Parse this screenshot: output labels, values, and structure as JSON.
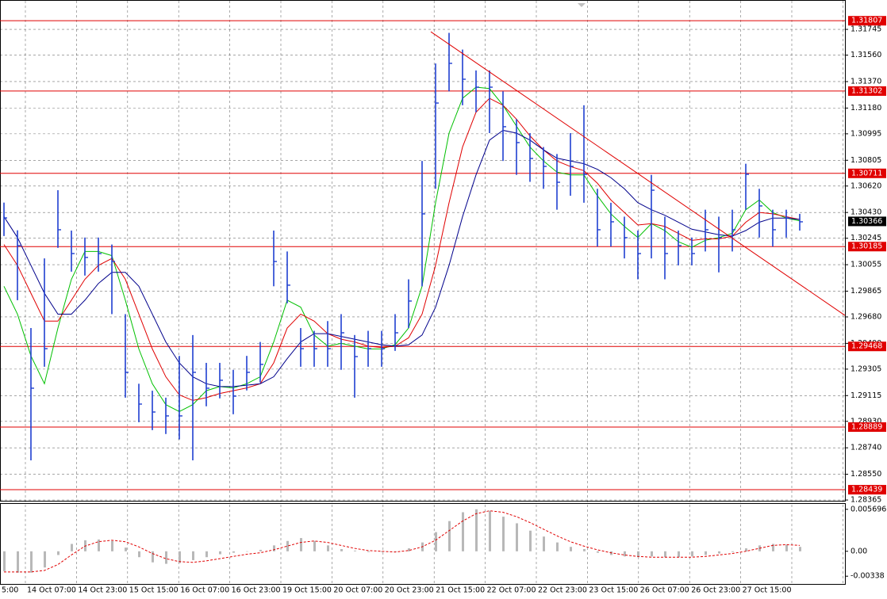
{
  "chart_data": [
    {
      "type": "ohlc",
      "ylim": [
        1.28354,
        1.31956
      ],
      "yticks": [
        1.31745,
        {
          "value": 1.3156,
          "label": "1.31560"
        },
        {
          "value": 1.3137,
          "label": "1.31370"
        },
        {
          "value": 1.3118,
          "label": "1.31180"
        },
        1.30995,
        1.30805,
        {
          "value": 1.3062,
          "label": "1.30620"
        },
        {
          "value": 1.3043,
          "label": "1.30430"
        },
        1.30245,
        1.30055,
        1.29865,
        {
          "value": 1.2968,
          "label": "1.29680"
        },
        {
          "value": 1.2949,
          "label": "1.29490"
        },
        1.29305,
        1.29115,
        {
          "value": 1.2893,
          "label": "1.28930"
        },
        {
          "value": 1.2874,
          "label": "1.28740"
        },
        {
          "value": 1.2855,
          "label": "1.28550"
        },
        1.28365
      ],
      "grid": true,
      "x_labels": [
        "5:00",
        "14 Oct 07:00",
        "14 Oct 23:00",
        "15 Oct 15:00",
        "16 Oct 07:00",
        "16 Oct 23:00",
        "19 Oct 15:00",
        "20 Oct 07:00",
        "20 Oct 23:00",
        "21 Oct 15:00",
        "22 Oct 07:00",
        "22 Oct 23:00",
        "23 Oct 15:00",
        "26 Oct 07:00",
        "26 Oct 23:00",
        "27 Oct 15:00"
      ],
      "bars": {
        "color": "#1f3fd0",
        "high": [
          1.30501,
          1.30302,
          1.296,
          1.301,
          1.3059,
          1.303,
          1.3025,
          1.3025,
          1.302,
          1.297,
          1.292,
          1.2915,
          1.291,
          1.294,
          1.2955,
          1.2935,
          1.2935,
          1.293,
          1.294,
          1.295,
          1.303,
          1.3015,
          1.296,
          1.2958,
          1.2965,
          1.297,
          1.2955,
          1.2958,
          1.2958,
          1.297,
          1.2995,
          1.308,
          1.315,
          1.3172,
          1.316,
          1.3145,
          1.3145,
          1.313,
          1.311,
          1.31,
          1.309,
          1.3085,
          1.31,
          1.312,
          1.306,
          1.305,
          1.304,
          1.303,
          1.307,
          1.304,
          1.303,
          1.3025,
          1.3045,
          1.304,
          1.3045,
          1.3078,
          1.306,
          1.3045,
          1.3045,
          1.3042
        ],
        "low": [
          1.30261,
          1.298,
          1.2865,
          1.29322,
          1.30176,
          1.30005,
          1.29977,
          1.30005,
          1.297,
          1.291,
          1.28924,
          1.28867,
          1.28839,
          1.288,
          1.2865,
          1.29038,
          1.29095,
          1.28981,
          1.29152,
          1.29209,
          1.299,
          1.29778,
          1.29322,
          1.29322,
          1.29322,
          1.293,
          1.291,
          1.29322,
          1.29322,
          1.29436,
          1.296,
          1.299,
          1.306,
          1.313,
          1.312,
          1.3115,
          1.31,
          1.308,
          1.307,
          1.3065,
          1.306,
          1.3045,
          1.3055,
          1.305,
          1.30185,
          1.30185,
          1.301,
          1.2995,
          1.301,
          1.2995,
          1.3005,
          1.3005,
          1.3015,
          1.3,
          1.3015,
          1.3045,
          1.3025,
          1.30185,
          1.3025,
          1.303
        ],
        "close": [
          1.30391,
          1.30192,
          1.29168,
          1.29452,
          1.30306,
          1.30135,
          1.30107,
          1.30135,
          1.30078,
          1.29282,
          1.29054,
          1.28997,
          1.28969,
          1.28969,
          1.29282,
          1.29168,
          1.29225,
          1.29111,
          1.29282,
          1.29339,
          1.30078,
          1.29908,
          1.29452,
          1.29452,
          1.29452,
          1.29566,
          1.29395,
          1.29452,
          1.29452,
          1.29566,
          1.29794,
          1.3042,
          1.31216,
          1.31501,
          1.31387,
          1.3133,
          1.3133,
          1.31046,
          1.30932,
          1.30818,
          1.30761,
          1.30647,
          1.30761,
          1.30704,
          1.30306,
          1.30363,
          1.30249,
          1.30135,
          1.3059,
          1.30135,
          1.30192,
          1.30135,
          1.30306,
          1.30249,
          1.30306,
          1.30704,
          1.30477,
          1.30306,
          1.30391,
          1.30363
        ]
      },
      "series": [
        {
          "color": "#00c000",
          "values": [
            1.299,
            1.297,
            1.294,
            1.292,
            1.296,
            1.2995,
            1.3015,
            1.3015,
            1.3012,
            1.298,
            1.2945,
            1.292,
            1.2905,
            1.29,
            1.2905,
            1.2915,
            1.2918,
            1.2917,
            1.292,
            1.2925,
            1.295,
            1.298,
            1.2975,
            1.2955,
            1.2947,
            1.2949,
            1.2947,
            1.2945,
            1.2945,
            1.2948,
            1.296,
            1.299,
            1.305,
            1.31,
            1.3125,
            1.3133,
            1.3132,
            1.312,
            1.3105,
            1.309,
            1.308,
            1.3072,
            1.307,
            1.307,
            1.3055,
            1.3042,
            1.3033,
            1.3025,
            1.3035,
            1.303,
            1.3022,
            1.3018,
            1.3023,
            1.3025,
            1.3028,
            1.3045,
            1.3052,
            1.3043,
            1.3039,
            1.3037
          ]
        },
        {
          "color": "#e00000",
          "values": [
            1.302,
            1.3005,
            1.2985,
            1.2965,
            1.2965,
            1.298,
            1.2995,
            1.3005,
            1.301,
            1.2995,
            1.297,
            1.2945,
            1.2925,
            1.2912,
            1.2908,
            1.291,
            1.2913,
            1.2915,
            1.2917,
            1.292,
            1.2935,
            1.296,
            1.297,
            1.2965,
            1.2956,
            1.2952,
            1.295,
            1.2947,
            1.2946,
            1.2947,
            1.2953,
            1.297,
            1.3005,
            1.305,
            1.309,
            1.3115,
            1.3125,
            1.312,
            1.311,
            1.3098,
            1.3088,
            1.308,
            1.3076,
            1.3073,
            1.3064,
            1.3052,
            1.3043,
            1.3034,
            1.3035,
            1.3033,
            1.3028,
            1.3023,
            1.3024,
            1.3024,
            1.3026,
            1.3036,
            1.3043,
            1.3042,
            1.304,
            1.3038
          ]
        },
        {
          "color": "#00008b",
          "values": [
            1.304,
            1.3025,
            1.3005,
            1.2985,
            1.297,
            1.297,
            1.298,
            1.2992,
            1.3,
            1.3,
            1.299,
            1.297,
            1.295,
            1.2935,
            1.2925,
            1.292,
            1.2918,
            1.2918,
            1.2919,
            1.292,
            1.2925,
            1.2938,
            1.295,
            1.2956,
            1.2956,
            1.2954,
            1.2952,
            1.295,
            1.2948,
            1.2947,
            1.2948,
            1.2955,
            1.2975,
            1.3005,
            1.304,
            1.307,
            1.3095,
            1.3102,
            1.31,
            1.3095,
            1.3088,
            1.3082,
            1.308,
            1.3078,
            1.3074,
            1.3068,
            1.306,
            1.305,
            1.3045,
            1.3041,
            1.3036,
            1.3031,
            1.3029,
            1.3027,
            1.3026,
            1.303,
            1.3036,
            1.3039,
            1.3039,
            1.3038
          ]
        }
      ],
      "levels": {
        "color": "#e00000",
        "values": [
          1.31807,
          1.31302,
          1.30711,
          1.30185,
          1.29468,
          1.28889,
          1.28439
        ]
      },
      "last_price": 1.30366,
      "trendline": [
        1.31728,
        1.29691
      ]
    },
    {
      "type": "histogram",
      "ylim": [
        -0.00454,
        0.00643
      ],
      "yticks": [
        0.005696,
        {
          "value": 0,
          "label": "0.00"
        },
        -0.00338
      ],
      "color": "#b8b8b8",
      "values": [
        -0.0027,
        -0.0029,
        -0.0029,
        -0.0022,
        -0.0005,
        0.001,
        0.0015,
        0.0016,
        0.0014,
        0.0005,
        -0.0008,
        -0.0015,
        -0.0017,
        -0.0016,
        -0.0012,
        -0.0008,
        -0.0004,
        -0.0002,
        0,
        0.0002,
        0.0008,
        0.0014,
        0.0018,
        0.0014,
        0.0008,
        0.0003,
        0.0001,
        -0.0001,
        -0.0001,
        0,
        0.0004,
        0.0012,
        0.0026,
        0.0041,
        0.0053,
        0.0057,
        0.0055,
        0.0047,
        0.0038,
        0.0028,
        0.002,
        0.0012,
        0.0006,
        0.0003,
        -0.0002,
        -0.0005,
        -0.0007,
        -0.0008,
        -0.0007,
        -0.0008,
        -0.0008,
        -0.0007,
        -0.0005,
        -0.0003,
        -0.0001,
        0.0004,
        0.0008,
        0.001,
        0.0009,
        0.0006
      ],
      "signal": {
        "color": "#e00000",
        "values": [
          -0.0028,
          -0.0028,
          -0.0028,
          -0.0026,
          -0.0018,
          -0.0005,
          0.0007,
          0.0013,
          0.0015,
          0.0013,
          0.0006,
          -0.0003,
          -0.001,
          -0.0014,
          -0.0015,
          -0.0013,
          -0.001,
          -0.0007,
          -0.0004,
          -0.0002,
          0.0002,
          0.0007,
          0.0012,
          0.0014,
          0.0012,
          0.0008,
          0.0004,
          0.0001,
          0,
          -0.0001,
          0.0001,
          0.0006,
          0.0015,
          0.0028,
          0.0041,
          0.0051,
          0.0055,
          0.0053,
          0.0047,
          0.0039,
          0.003,
          0.0021,
          0.0013,
          0.0007,
          0.0002,
          -0.0002,
          -0.0005,
          -0.0007,
          -0.0008,
          -0.0008,
          -0.0008,
          -0.0008,
          -0.0007,
          -0.0005,
          -0.0003,
          0,
          0.0004,
          0.0008,
          0.0009,
          0.0008
        ]
      }
    }
  ]
}
